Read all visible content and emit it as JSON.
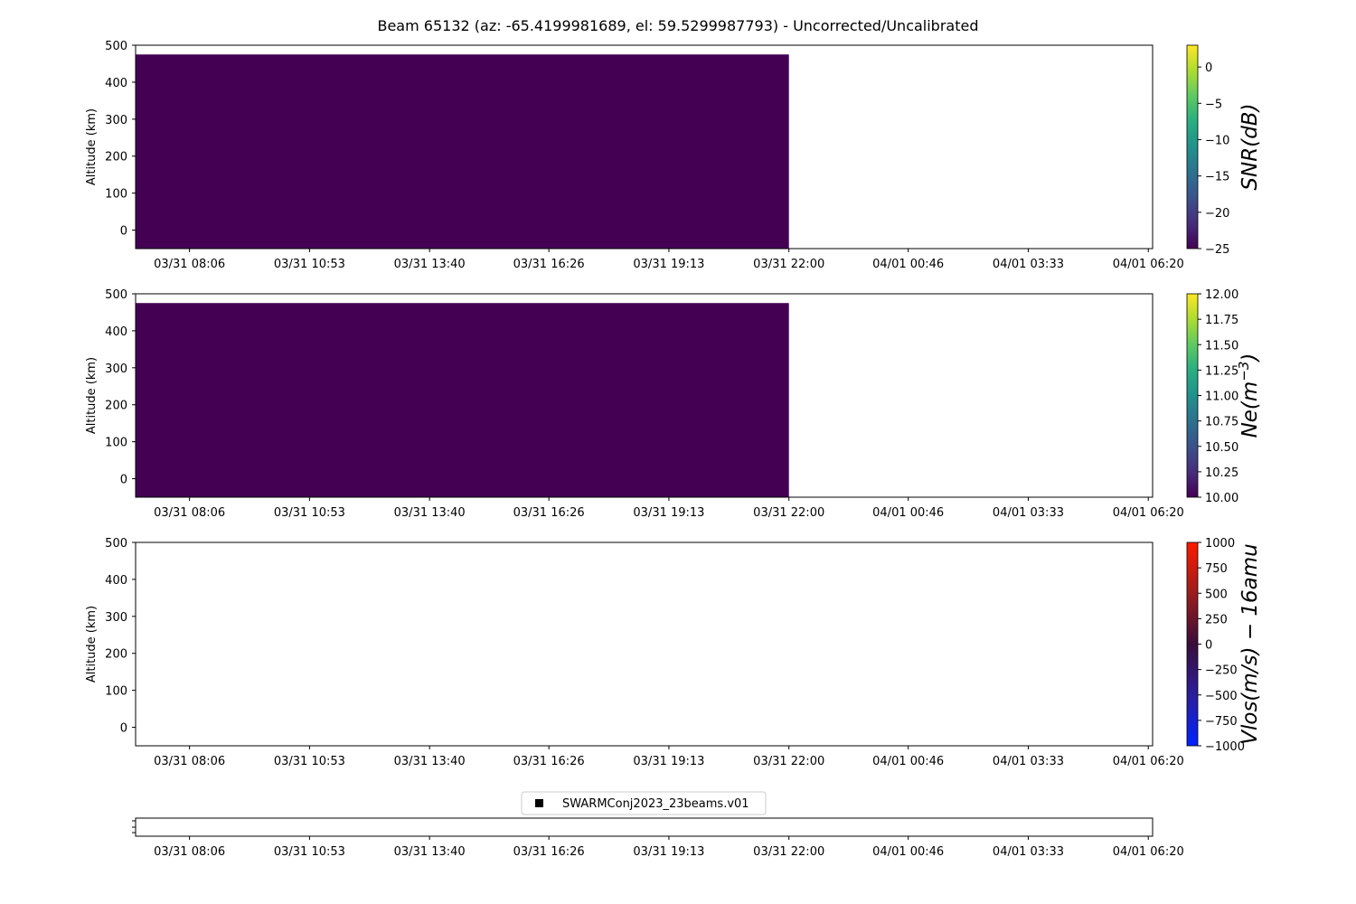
{
  "figure_title": "Beam 65132 (az: -65.4199981689, el: 59.5299987793) - Uncorrected/Uncalibrated",
  "chart_data": [
    {
      "type": "heatmap",
      "title": "",
      "ylabel": "Altitude (km)",
      "xlabel": "",
      "ylim": [
        -50,
        500
      ],
      "y_ticks": [
        "500",
        "400",
        "300",
        "200",
        "100",
        "0"
      ],
      "x_ticks": [
        "03/31 08:06",
        "03/31 10:53",
        "03/31 13:40",
        "03/31 16:26",
        "03/31 19:13",
        "03/31 22:00",
        "04/01 00:46",
        "04/01 03:33",
        "04/01 06:20"
      ],
      "x_range": [
        "03/31 06:51",
        "04/01 06:26"
      ],
      "filled_region": {
        "x_start": "03/31 06:51",
        "x_end": "03/31 22:00",
        "y_min": -50,
        "y_max": 475,
        "value": -25
      },
      "colorbar": {
        "label": "SNR(dB)",
        "colormap": "viridis",
        "range": [
          -25,
          3
        ],
        "ticks": [
          "0",
          "−5",
          "−10",
          "−15",
          "−20",
          "−25"
        ]
      }
    },
    {
      "type": "heatmap",
      "title": "",
      "ylabel": "Altitude (km)",
      "xlabel": "",
      "ylim": [
        -50,
        500
      ],
      "y_ticks": [
        "500",
        "400",
        "300",
        "200",
        "100",
        "0"
      ],
      "x_ticks": [
        "03/31 08:06",
        "03/31 10:53",
        "03/31 13:40",
        "03/31 16:26",
        "03/31 19:13",
        "03/31 22:00",
        "04/01 00:46",
        "04/01 03:33",
        "04/01 06:20"
      ],
      "x_range": [
        "03/31 06:51",
        "04/01 06:26"
      ],
      "filled_region": {
        "x_start": "03/31 06:51",
        "x_end": "03/31 22:00",
        "y_min": -50,
        "y_max": 475,
        "value": 10
      },
      "colorbar": {
        "label": "Ne(m",
        "label_sup": "−3",
        "label_close": ")",
        "colormap": "viridis",
        "range": [
          10,
          12
        ],
        "ticks": [
          "12.00",
          "11.75",
          "11.50",
          "11.25",
          "11.00",
          "10.75",
          "10.50",
          "10.25",
          "10.00"
        ]
      }
    },
    {
      "type": "heatmap",
      "title": "",
      "ylabel": "Altitude (km)",
      "xlabel": "",
      "ylim": [
        -50,
        500
      ],
      "y_ticks": [
        "500",
        "400",
        "300",
        "200",
        "100",
        "0"
      ],
      "x_ticks": [
        "03/31 08:06",
        "03/31 10:53",
        "03/31 13:40",
        "03/31 16:26",
        "03/31 19:13",
        "03/31 22:00",
        "04/01 00:46",
        "04/01 03:33",
        "04/01 06:20"
      ],
      "x_range": [
        "03/31 06:51",
        "04/01 06:26"
      ],
      "filled_region": null,
      "colorbar": {
        "label": "Vlos(m/s) − 16amu",
        "colormap": "bwr-dark",
        "range": [
          -1000,
          1000
        ],
        "ticks": [
          "1000",
          "750",
          "500",
          "250",
          "0",
          "−250",
          "−500",
          "−750",
          "−1000"
        ]
      }
    },
    {
      "type": "scatter",
      "title": "",
      "legend": {
        "placement": "top-center",
        "entries": [
          {
            "label": "SWARMConj2023_23beams.v01",
            "marker": "square",
            "color": "#000000"
          }
        ]
      },
      "x_ticks": [
        "03/31 08:06",
        "03/31 10:53",
        "03/31 13:40",
        "03/31 16:26",
        "03/31 19:13",
        "03/31 22:00",
        "04/01 00:46",
        "04/01 03:33",
        "04/01 06:20"
      ],
      "x_range": [
        "03/31 06:51",
        "04/01 06:26"
      ],
      "points": []
    }
  ],
  "colors": {
    "viridis_low": "#440154",
    "viridis_high": "#fde725",
    "axis": "#000000"
  }
}
